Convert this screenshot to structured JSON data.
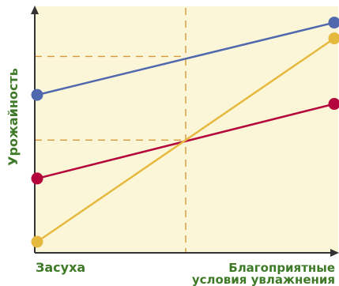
{
  "chart_data": {
    "type": "line",
    "title": "",
    "ylabel": "Урожайность",
    "x_label_left": "Засуха",
    "x_label_right_line1": "Благоприятные",
    "x_label_right_line2": "условия увлажнения",
    "x": [
      0,
      1
    ],
    "xlim": [
      0,
      1
    ],
    "ylim": [
      0,
      1
    ],
    "grid": false,
    "series": [
      {
        "color": "#5068ad",
        "values": [
          0.65,
          0.97
        ]
      },
      {
        "color": "#b3063c",
        "values": [
          0.28,
          0.61
        ]
      },
      {
        "color": "#e5b83e",
        "values": [
          0.0,
          0.9
        ]
      }
    ],
    "guides": {
      "vertical_x": 0.5,
      "horizontal_y": [
        0.82,
        0.45
      ]
    },
    "colors": {
      "plot_background": "#fcf6d8",
      "axis": "#333333",
      "guide": "#d59a3a",
      "label": "#3f7a28"
    }
  }
}
